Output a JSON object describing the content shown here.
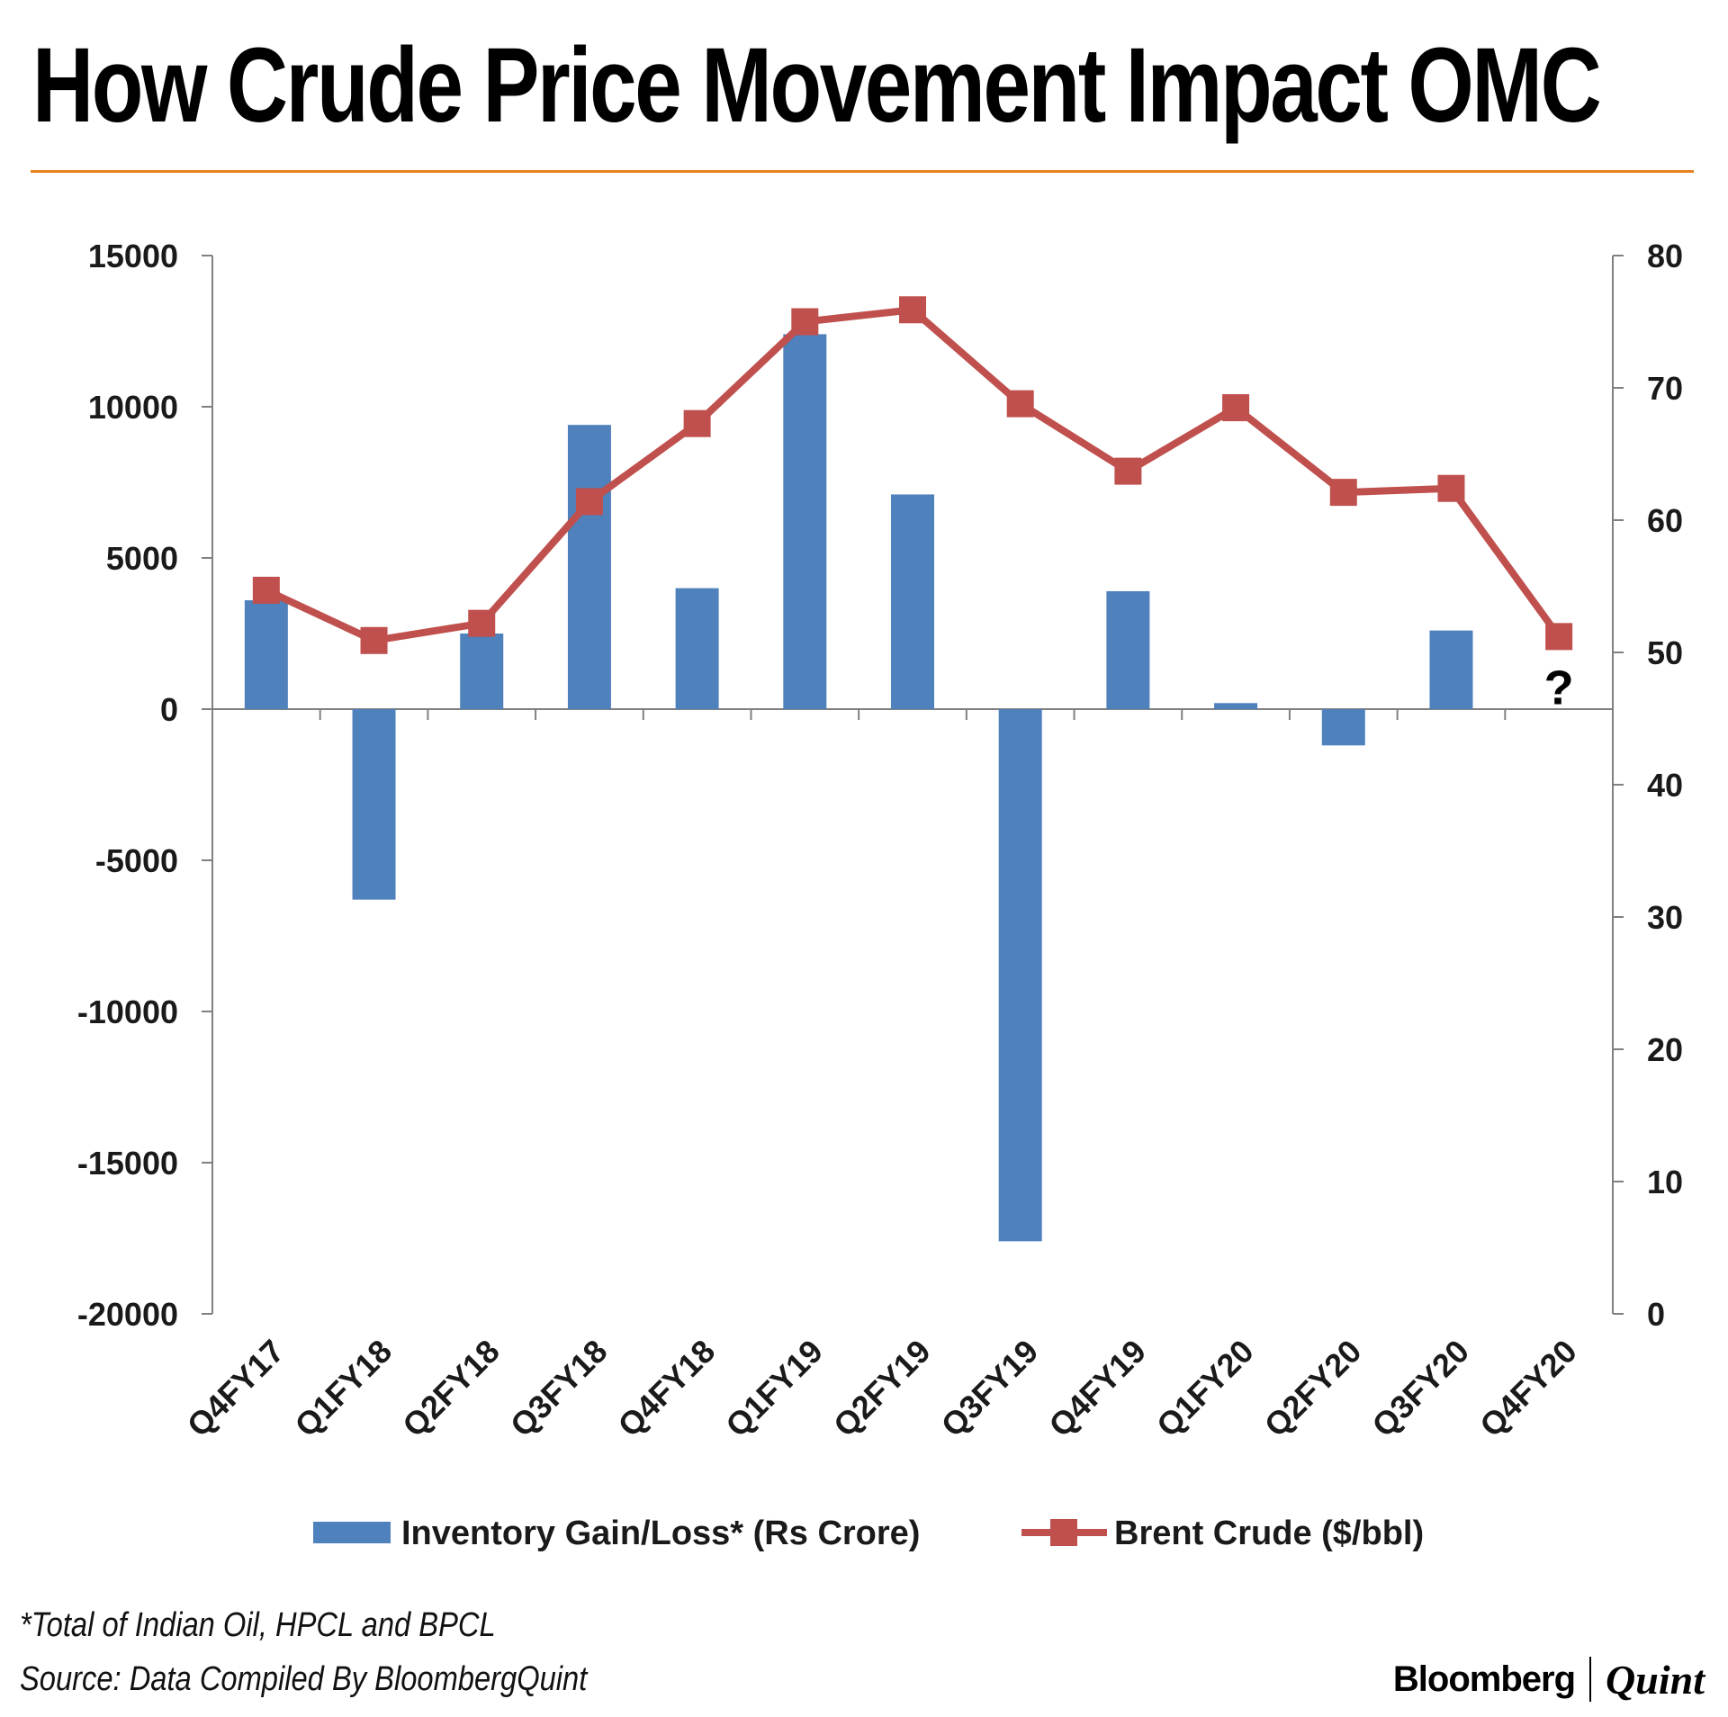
{
  "title": "How Crude Price Movement Impact OMC",
  "footnote": "*Total of Indian Oil, HPCL and BPCL",
  "source": "Source: Data Compiled By BloombergQuint",
  "logo": {
    "left": "Bloomberg",
    "right": "Quint"
  },
  "colors": {
    "accent_rule": "#e8821e",
    "bar": "#4f81bd",
    "line": "#c0504d",
    "axis": "#808080"
  },
  "chart_data": {
    "type": "bar+line",
    "title": "How Crude Price Movement Impact OMC",
    "categories": [
      "Q4FY17",
      "Q1FY18",
      "Q2FY18",
      "Q3FY18",
      "Q4FY18",
      "Q1FY19",
      "Q2FY19",
      "Q3FY19",
      "Q4FY19",
      "Q1FY20",
      "Q2FY20",
      "Q3FY20",
      "Q4FY20"
    ],
    "series": [
      {
        "name": "Inventory Gain/Loss* (Rs Crore)",
        "type": "bar",
        "axis": "left",
        "values": [
          3600,
          -6300,
          2500,
          9400,
          4000,
          12400,
          7100,
          -17600,
          3900,
          200,
          -1200,
          2600,
          null
        ]
      },
      {
        "name": "Brent Crude ($/bbl)",
        "type": "line",
        "axis": "right",
        "values": [
          54.7,
          50.9,
          52.2,
          61.4,
          67.3,
          75.0,
          75.9,
          68.8,
          63.7,
          68.5,
          62.1,
          62.4,
          51.2
        ]
      }
    ],
    "left_axis": {
      "min": -20000,
      "max": 15000,
      "ticks": [
        "15000",
        "10000",
        "5000",
        "0",
        "-5000",
        "-10000",
        "-15000",
        "-20000"
      ]
    },
    "right_axis": {
      "min": 0,
      "max": 80,
      "ticks": [
        "80",
        "70",
        "60",
        "50",
        "40",
        "30",
        "20",
        "10",
        "0"
      ]
    },
    "annotations": [
      {
        "category": "Q4FY20",
        "text": "?"
      }
    ],
    "legend_position": "bottom",
    "grid": false
  }
}
